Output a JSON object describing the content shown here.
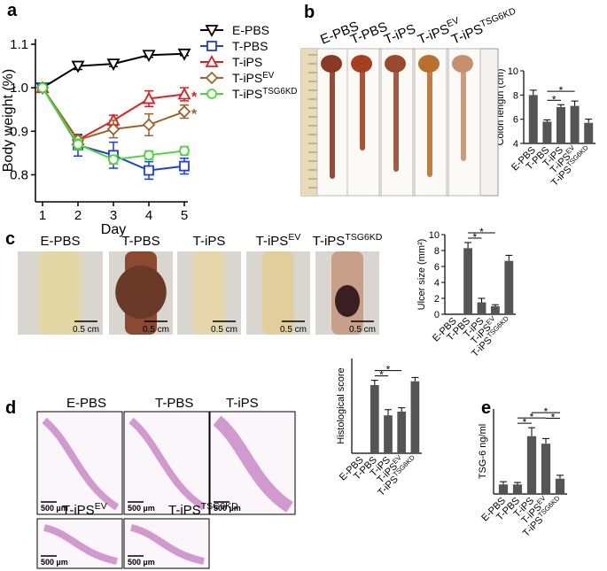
{
  "chart_data": [
    {
      "type": "line",
      "panel": "a",
      "ylabel": "Body weight (%)",
      "xlabel": "Day",
      "x": [
        1,
        2,
        3,
        4,
        5
      ],
      "xlim": [
        1,
        5
      ],
      "xticks": [
        1,
        2,
        3,
        4,
        5
      ],
      "ylim": [
        0.75,
        1.1
      ],
      "yticks": [
        0.8,
        0.9,
        {
          "value": 1.0,
          "label": "1.0"
        },
        1.1
      ],
      "series": [
        {
          "name": "E-PBS",
          "superscript": null,
          "color": "#000000",
          "marker": "triangle-down",
          "values": [
            1.0,
            1.05,
            1.055,
            1.075,
            1.078
          ],
          "errors": [
            0,
            0.008,
            0.006,
            0.005,
            0.004
          ]
        },
        {
          "name": "T-PBS",
          "superscript": null,
          "color": "#1f3fd6",
          "marker": "square",
          "values": [
            1.0,
            0.868,
            0.845,
            0.81,
            0.82
          ],
          "errors": [
            0,
            0.025,
            0.03,
            0.02,
            0.018
          ]
        },
        {
          "name": "T-iPS",
          "superscript": null,
          "color": "#e02020",
          "marker": "triangle-up",
          "values": [
            1.0,
            0.88,
            0.925,
            0.975,
            0.985
          ],
          "errors": [
            0,
            0.01,
            0.012,
            0.018,
            0.015
          ]
        },
        {
          "name": "T-iPS",
          "superscript": "EV",
          "color": "#a0622a",
          "marker": "diamond",
          "values": [
            1.0,
            0.88,
            0.905,
            0.915,
            0.945
          ],
          "errors": [
            0,
            0.01,
            0.02,
            0.025,
            0.015
          ]
        },
        {
          "name": "T-iPS",
          "superscript": "TSG6KD",
          "color": "#4cd836",
          "marker": "circle",
          "values": [
            1.0,
            0.87,
            0.835,
            0.845,
            0.855
          ],
          "errors": [
            0,
            0.012,
            0.01,
            0.01,
            0.01
          ]
        }
      ],
      "annotations": [
        {
          "text": "*",
          "color": "#e02020",
          "x": 5,
          "y": 0.985
        },
        {
          "text": "*",
          "color": "#a0622a",
          "x": 5,
          "y": 0.945
        }
      ]
    },
    {
      "type": "bar",
      "panel": "b",
      "ylabel": "Colon length (cm)",
      "color": "#555555",
      "categories": [
        "E-PBS",
        "T-PBS",
        "T-iPS",
        "T-iPS",
        "T-iPS"
      ],
      "category_superscripts": [
        null,
        null,
        null,
        "EV",
        "TSG6KD"
      ],
      "values": [
        8.0,
        5.8,
        7.0,
        7.1,
        5.7
      ],
      "errors": [
        0.4,
        0.15,
        0.2,
        0.4,
        0.3
      ],
      "ylim": [
        4,
        10
      ],
      "yticks": [
        4,
        6,
        8,
        10
      ],
      "significance": [
        {
          "from": 1,
          "to": 2,
          "label": "*"
        },
        {
          "from": 1,
          "to": 3,
          "label": "*"
        }
      ]
    },
    {
      "type": "bar",
      "panel": "c",
      "ylabel": "Ulcer size (mm²)",
      "color": "#555555",
      "categories": [
        "E-PBS",
        "T-PBS",
        "T-iPS",
        "T-iPS",
        "T-iPS"
      ],
      "category_superscripts": [
        null,
        null,
        null,
        "EV",
        "TSG6KD"
      ],
      "values": [
        0,
        8.3,
        1.5,
        1.0,
        6.7
      ],
      "errors": [
        0,
        0.7,
        0.5,
        0.2,
        0.7
      ],
      "ylim": [
        0,
        10
      ],
      "yticks": [
        0,
        2,
        4,
        6,
        8,
        10
      ],
      "significance": [
        {
          "from": 1,
          "to": 2,
          "label": "*"
        },
        {
          "from": 1,
          "to": 3,
          "label": "*"
        }
      ]
    },
    {
      "type": "bar",
      "panel": "d",
      "ylabel": "Histological score",
      "color": "#555555",
      "categories": [
        "E-PBS",
        "T-PBS",
        "T-iPS",
        "T-iPS",
        "T-iPS"
      ],
      "category_superscripts": [
        null,
        null,
        null,
        "EV",
        "TSG6KD"
      ],
      "values": [
        0,
        3.6,
        2.0,
        2.2,
        3.8
      ],
      "errors": [
        0,
        0.25,
        0.3,
        0.2,
        0.2
      ],
      "ylim": [
        0,
        5
      ],
      "significance": [
        {
          "from": 1,
          "to": 2,
          "label": "*"
        },
        {
          "from": 1,
          "to": 3,
          "label": "*"
        }
      ]
    },
    {
      "type": "bar",
      "panel": "e",
      "ylabel": "TSG-6 ng/ml",
      "color": "#555555",
      "categories": [
        "E-PBS",
        "T-PBS",
        "T-iPS",
        "T-iPS",
        "T-iPS"
      ],
      "category_superscripts": [
        null,
        null,
        null,
        "EV",
        "TSG6KD"
      ],
      "values": [
        2.8,
        2.8,
        17.0,
        14.8,
        4.5
      ],
      "errors": [
        0.8,
        0.6,
        2.5,
        1.5,
        1.0
      ],
      "ylim": [
        0,
        25
      ],
      "significance": [
        {
          "from": 1,
          "to": 2,
          "label": "*"
        },
        {
          "from": 1,
          "to": 3,
          "label": "*"
        },
        {
          "from": 2,
          "to": 4,
          "label": "*"
        },
        {
          "from": 3,
          "to": 4,
          "label": "*"
        }
      ]
    }
  ],
  "images": {
    "b": {
      "labels": [
        "E-PBS",
        "T-PBS",
        "T-iPS",
        "T-iPS",
        "T-iPS"
      ],
      "superscripts": [
        null,
        null,
        null,
        "EV",
        "TSG6KD"
      ]
    },
    "c": {
      "labels": [
        "E-PBS",
        "T-PBS",
        "T-iPS",
        "T-iPS",
        "T-iPS"
      ],
      "superscripts": [
        null,
        null,
        null,
        "EV",
        "TSG6KD"
      ],
      "scale": "0.5 cm"
    },
    "d": {
      "labels": [
        "E-PBS",
        "T-PBS",
        "T-iPS",
        "T-iPS",
        "T-iPS"
      ],
      "superscripts": [
        null,
        null,
        null,
        "EV",
        "TSG6KD"
      ],
      "scale": "500 µm"
    }
  }
}
